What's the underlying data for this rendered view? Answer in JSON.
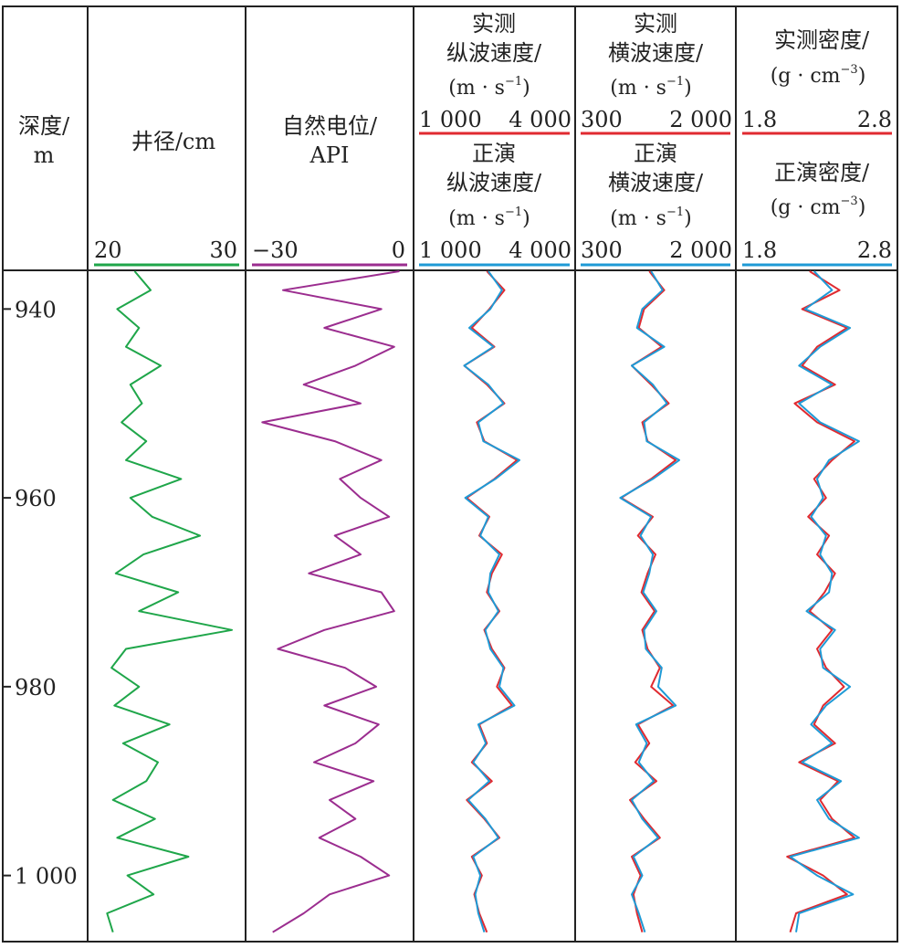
{
  "depth_header": {
    "line1": "深度/",
    "line2": "m"
  },
  "tracks": [
    {
      "id": "caliper",
      "headers": [
        "井径/cm"
      ],
      "scales": [
        {
          "min": "20",
          "max": "30",
          "color": "#1fa64a"
        }
      ]
    },
    {
      "id": "sp",
      "headers": [
        "自然电位/",
        "API"
      ],
      "scales": [
        {
          "min": "−30",
          "max": "0",
          "color": "#9b2d8f"
        }
      ]
    },
    {
      "id": "vp",
      "measured": {
        "line1": "实测",
        "line2": "纵波速度/",
        "unit": "(m · s"
      },
      "modeled": {
        "line1": "正演",
        "line2": "纵波速度/",
        "unit": "(m · s"
      },
      "sup": "−1",
      "scales": [
        {
          "min": "1 000",
          "max": "4 000",
          "color": "#e02a30"
        },
        {
          "min": "1 000",
          "max": "4 000",
          "color": "#1e9ad6"
        }
      ]
    },
    {
      "id": "vs",
      "measured": {
        "line1": "实测",
        "line2": "横波速度/",
        "unit": "(m · s"
      },
      "modeled": {
        "line1": "正演",
        "line2": "横波速度/",
        "unit": "(m · s"
      },
      "sup": "−1",
      "scales": [
        {
          "min": "300",
          "max": "2 000",
          "color": "#e02a30"
        },
        {
          "min": "300",
          "max": "2 000",
          "color": "#1e9ad6"
        }
      ]
    },
    {
      "id": "rho",
      "measured": {
        "line1": "实测密度/",
        "unit": "(g · cm"
      },
      "modeled": {
        "line1": "正演密度/",
        "unit": "(g · cm"
      },
      "sup": "−3",
      "scales": [
        {
          "min": "1.8",
          "max": "2.8",
          "color": "#e02a30"
        },
        {
          "min": "1.8",
          "max": "2.8",
          "color": "#1e9ad6"
        }
      ]
    }
  ],
  "chart_data": {
    "type": "line",
    "ylabel": "深度/m",
    "ylim": [
      936,
      1007
    ],
    "depth_ticks": [
      {
        "value": 940,
        "label": "940"
      },
      {
        "value": 960,
        "label": "960"
      },
      {
        "value": 980,
        "label": "980"
      },
      {
        "value": 1000,
        "label": "1 000"
      }
    ],
    "depth": [
      936,
      938,
      940,
      942,
      944,
      946,
      948,
      950,
      952,
      954,
      956,
      958,
      960,
      962,
      964,
      966,
      968,
      970,
      972,
      974,
      976,
      978,
      980,
      982,
      984,
      986,
      988,
      990,
      992,
      994,
      996,
      998,
      1000,
      1002,
      1004,
      1006
    ],
    "caliper_cm": [
      22.8,
      23.9,
      21.6,
      23.1,
      22.2,
      24.6,
      22.5,
      23.3,
      21.9,
      23.6,
      22.2,
      26.0,
      22.5,
      24.0,
      27.3,
      23.4,
      21.5,
      25.8,
      23.1,
      29.5,
      22.2,
      21.2,
      23.1,
      21.4,
      25.2,
      22.0,
      24.4,
      23.6,
      21.3,
      24.2,
      21.6,
      26.5,
      22.3,
      24.1,
      20.9,
      21.3
    ],
    "sp_api": [
      -1.5,
      -24,
      -5,
      -16,
      -2.5,
      -10,
      -20,
      -9,
      -28,
      -14,
      -5,
      -13,
      -9,
      -3.5,
      -14,
      -9,
      -19,
      -5,
      -2.5,
      -16,
      -25,
      -12,
      -6,
      -16,
      -5.5,
      -10,
      -18,
      -6.5,
      -15,
      -10,
      -17,
      -9,
      -3.5,
      -15,
      -20,
      -26
    ],
    "vp_measured": [
      2350,
      2700,
      2400,
      2050,
      2500,
      1900,
      2350,
      2700,
      2150,
      2300,
      2950,
      2500,
      1950,
      2400,
      2200,
      2650,
      2450,
      2350,
      2600,
      2300,
      2450,
      2700,
      2550,
      2850,
      2200,
      2350,
      2050,
      2450,
      1950,
      2300,
      2600,
      2050,
      2250,
      2100,
      2200,
      2350
    ],
    "vp_modeled": [
      2380,
      2650,
      2420,
      2000,
      2480,
      1900,
      2380,
      2680,
      2180,
      2280,
      3000,
      2520,
      1920,
      2380,
      2220,
      2600,
      2420,
      2380,
      2580,
      2320,
      2420,
      2680,
      2600,
      2900,
      2180,
      2330,
      2080,
      2400,
      1980,
      2320,
      2580,
      2080,
      2220,
      2120,
      2180,
      2300
    ],
    "vs_measured": [
      1080,
      1250,
      1020,
      960,
      1220,
      880,
      1100,
      1300,
      1000,
      1060,
      1380,
      1100,
      760,
      1120,
      950,
      1150,
      1060,
      990,
      1140,
      1000,
      1060,
      1200,
      1100,
      1350,
      950,
      1080,
      920,
      1160,
      860,
      1020,
      1200,
      880,
      980,
      900,
      940,
      1000
    ],
    "vs_modeled": [
      1100,
      1230,
      1000,
      940,
      1250,
      880,
      1120,
      1280,
      1020,
      1050,
      1420,
      1120,
      750,
      1100,
      980,
      1120,
      1080,
      1010,
      1160,
      1020,
      1040,
      1220,
      1180,
      1380,
      930,
      1050,
      960,
      1130,
      880,
      1000,
      1180,
      900,
      1000,
      880,
      960,
      1030
    ],
    "rho_measured": [
      2.25,
      2.45,
      2.2,
      2.5,
      2.3,
      2.2,
      2.42,
      2.15,
      2.3,
      2.55,
      2.4,
      2.28,
      2.36,
      2.24,
      2.38,
      2.3,
      2.42,
      2.35,
      2.25,
      2.4,
      2.3,
      2.36,
      2.48,
      2.34,
      2.28,
      2.42,
      2.18,
      2.44,
      2.32,
      2.4,
      2.55,
      2.1,
      2.34,
      2.5,
      2.16,
      2.12
    ],
    "rho_modeled": [
      2.28,
      2.4,
      2.22,
      2.52,
      2.32,
      2.18,
      2.4,
      2.18,
      2.32,
      2.58,
      2.38,
      2.3,
      2.34,
      2.26,
      2.36,
      2.32,
      2.4,
      2.38,
      2.23,
      2.42,
      2.32,
      2.34,
      2.52,
      2.36,
      2.26,
      2.4,
      2.2,
      2.46,
      2.3,
      2.38,
      2.58,
      2.12,
      2.3,
      2.54,
      2.18,
      2.16
    ]
  }
}
